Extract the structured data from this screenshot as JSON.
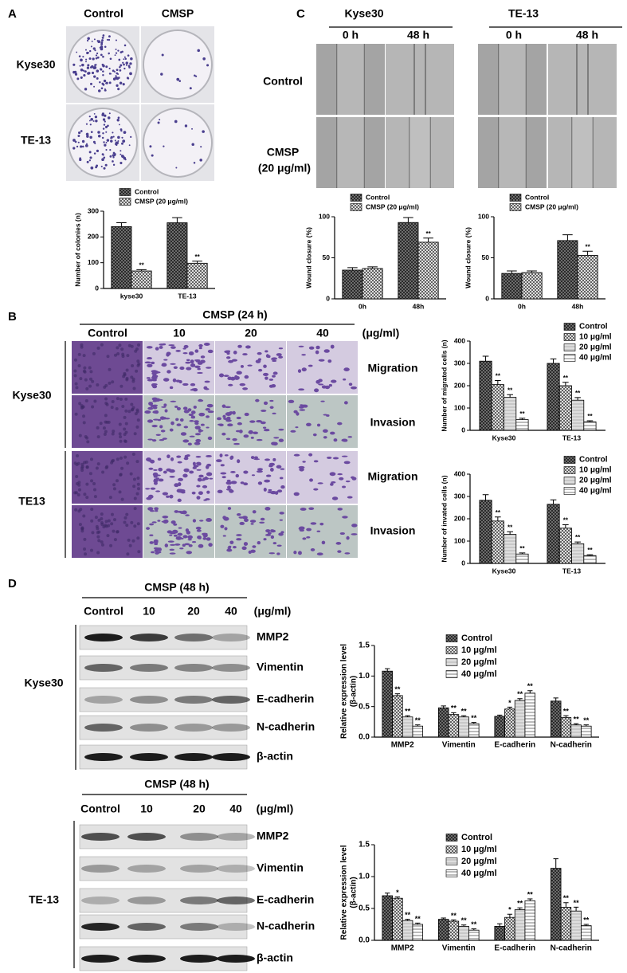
{
  "panel_a": {
    "label": "A",
    "columns": [
      "Control",
      "CMSP"
    ],
    "rows": [
      "Kyse30",
      "TE-13"
    ]
  },
  "panel_c": {
    "label": "C",
    "groups": [
      {
        "name": "Kyse30",
        "times": [
          "0 h",
          "48 h"
        ]
      },
      {
        "name": "TE-13",
        "times": [
          "0 h",
          "48 h"
        ]
      }
    ],
    "rows": [
      "Control",
      "CMSP",
      "(20 μg/ml)"
    ]
  },
  "panel_b": {
    "label": "B",
    "treatment": "CMSP (24 h)",
    "columns": [
      "Control",
      "10",
      "20",
      "40"
    ],
    "unit": "(μg/ml)",
    "rows": [
      "Kyse30",
      "TE13"
    ],
    "assays": [
      "Migration",
      "Invasion",
      "Migration",
      "Invasion"
    ]
  },
  "panel_d": {
    "label": "D",
    "blots": [
      {
        "treatment": "CMSP (48 h)",
        "columns": [
          "Control",
          "10",
          "20",
          "40"
        ],
        "unit": "(μg/ml)",
        "cell_line": "Kyse30",
        "proteins": [
          "MMP2",
          "Vimentin",
          "E-cadherin",
          "N-cadherin",
          "β-actin"
        ]
      },
      {
        "treatment": "CMSP (48 h)",
        "columns": [
          "Control",
          "10",
          "20",
          "40"
        ],
        "unit": "(μg/ml)",
        "cell_line": "TE-13",
        "proteins": [
          "MMP2",
          "Vimentin",
          "E-cadherin",
          "N-cadherin",
          "β-actin"
        ]
      }
    ]
  },
  "chart_data": [
    {
      "type": "bar",
      "ylabel": [
        "Number of colonies (n)"
      ],
      "legend": "above",
      "categories": [
        "kyse30",
        "TE-13"
      ],
      "series": [
        {
          "name": "Control",
          "color": "#6d6d6d",
          "values": [
            240,
            255
          ],
          "errors": [
            15,
            20
          ]
        },
        {
          "name": "CMSP (20 μg/ml)",
          "color": "#444444",
          "values": [
            68,
            98
          ],
          "errors": [
            5,
            8
          ],
          "sig": [
            "**",
            "**"
          ]
        }
      ],
      "ylim": [
        0,
        300
      ],
      "yticks": [
        0,
        100,
        200,
        300
      ]
    },
    {
      "type": "bar",
      "ylabel": [
        "Wound closure (%)"
      ],
      "legend": "above",
      "categories": [
        "0h",
        "48h"
      ],
      "series": [
        {
          "name": "Control",
          "color": "#6d6d6d",
          "values": [
            35,
            93
          ],
          "errors": [
            3,
            6
          ]
        },
        {
          "name": "CMSP (20 μg/ml)",
          "color": "#444444",
          "values": [
            37,
            69
          ],
          "errors": [
            2,
            5
          ],
          "sig": [
            null,
            "**"
          ]
        }
      ],
      "ylim": [
        0,
        100
      ],
      "yticks": [
        0,
        50,
        100
      ]
    },
    {
      "type": "bar",
      "ylabel": [
        "Wound closure (%)"
      ],
      "legend": "above",
      "categories": [
        "0h",
        "48h"
      ],
      "series": [
        {
          "name": "Control",
          "color": "#6d6d6d",
          "values": [
            31,
            71
          ],
          "errors": [
            3,
            7
          ]
        },
        {
          "name": "CMSP (20 μg/ml)",
          "color": "#444444",
          "values": [
            32,
            53
          ],
          "errors": [
            2,
            5
          ],
          "sig": [
            null,
            "**"
          ]
        }
      ],
      "ylim": [
        0,
        100
      ],
      "yticks": [
        0,
        50,
        100
      ]
    },
    {
      "type": "bar",
      "ylabel": [
        "Number of migrated cells (n)"
      ],
      "legend": "top-right",
      "categories": [
        "Kyse30",
        "TE-13"
      ],
      "series": [
        {
          "name": "Control",
          "color": "#6d6d6d",
          "values": [
            310,
            300
          ],
          "errors": [
            22,
            20
          ]
        },
        {
          "name": "10 μg/ml",
          "color": "#444444",
          "values": [
            205,
            200
          ],
          "errors": [
            18,
            15
          ],
          "sig": [
            "**",
            "**"
          ]
        },
        {
          "name": "20 μg/ml",
          "color": "#c8c8c8",
          "values": [
            148,
            135
          ],
          "errors": [
            12,
            12
          ],
          "sig": [
            "**",
            "**"
          ]
        },
        {
          "name": "40 μg/ml",
          "color": "#555555",
          "values": [
            48,
            38
          ],
          "errors": [
            6,
            5
          ],
          "sig": [
            "**",
            "**"
          ]
        }
      ],
      "ylim": [
        0,
        400
      ],
      "yticks": [
        0,
        100,
        200,
        300,
        400
      ]
    },
    {
      "type": "bar",
      "ylabel": [
        "Number of invated cells (n)"
      ],
      "legend": "top-right",
      "categories": [
        "Kyse30",
        "TE-13"
      ],
      "series": [
        {
          "name": "Control",
          "color": "#6d6d6d",
          "values": [
            283,
            265
          ],
          "errors": [
            25,
            20
          ]
        },
        {
          "name": "10 μg/ml",
          "color": "#444444",
          "values": [
            190,
            158
          ],
          "errors": [
            18,
            15
          ],
          "sig": [
            "**",
            "**"
          ]
        },
        {
          "name": "20 μg/ml",
          "color": "#c8c8c8",
          "values": [
            130,
            88
          ],
          "errors": [
            12,
            8
          ],
          "sig": [
            "**",
            "**"
          ]
        },
        {
          "name": "40 μg/ml",
          "color": "#555555",
          "values": [
            42,
            35
          ],
          "errors": [
            5,
            4
          ],
          "sig": [
            "**",
            "**"
          ]
        }
      ],
      "ylim": [
        0,
        400
      ],
      "yticks": [
        0,
        100,
        200,
        300,
        400
      ]
    },
    {
      "type": "bar",
      "ylabel": [
        "Relative expression level",
        "(β-actin)"
      ],
      "legend": "top",
      "categories": [
        "MMP2",
        "Vimentin",
        "E-cadherin",
        "N-cadherin"
      ],
      "series": [
        {
          "name": "Control",
          "color": "#6d6d6d",
          "values": [
            1.08,
            0.48,
            0.34,
            0.59
          ],
          "errors": [
            0.04,
            0.03,
            0.02,
            0.05
          ]
        },
        {
          "name": "10 μg/ml",
          "color": "#444444",
          "values": [
            0.68,
            0.37,
            0.46,
            0.32
          ],
          "errors": [
            0.03,
            0.03,
            0.03,
            0.03
          ],
          "sig": [
            "**",
            "**",
            "*",
            "**"
          ]
        },
        {
          "name": "20 μg/ml",
          "color": "#c8c8c8",
          "values": [
            0.33,
            0.33,
            0.6,
            0.2
          ],
          "errors": [
            0.02,
            0.02,
            0.03,
            0.02
          ],
          "sig": [
            "**",
            "**",
            "**",
            "**"
          ]
        },
        {
          "name": "40 μg/ml",
          "color": "#555555",
          "values": [
            0.18,
            0.22,
            0.72,
            0.18
          ],
          "errors": [
            0.02,
            0.02,
            0.04,
            0.02
          ],
          "sig": [
            "**",
            "**",
            "**",
            "**"
          ]
        }
      ],
      "ylim": [
        0,
        1.5
      ],
      "yticks": [
        {
          "value": 0,
          "label": "0.0"
        },
        {
          "value": 0.5,
          "label": "0.5"
        },
        {
          "value": 1,
          "label": "1.0"
        },
        {
          "value": 1.5,
          "label": "1.5"
        }
      ]
    },
    {
      "type": "bar",
      "ylabel": [
        "Relative expression level",
        "(β-actin)"
      ],
      "legend": "top",
      "categories": [
        "MMP2",
        "Vimentin",
        "E-cadherin",
        "N-cadherin"
      ],
      "series": [
        {
          "name": "Control",
          "color": "#6d6d6d",
          "values": [
            0.7,
            0.33,
            0.22,
            1.13
          ],
          "errors": [
            0.04,
            0.02,
            0.04,
            0.15
          ]
        },
        {
          "name": "10 μg/ml",
          "color": "#444444",
          "values": [
            0.66,
            0.3,
            0.36,
            0.52
          ],
          "errors": [
            0.02,
            0.02,
            0.05,
            0.07
          ],
          "sig": [
            "*",
            "**",
            "*",
            "**"
          ]
        },
        {
          "name": "20 μg/ml",
          "color": "#c8c8c8",
          "values": [
            0.31,
            0.22,
            0.48,
            0.46
          ],
          "errors": [
            0.02,
            0.02,
            0.03,
            0.06
          ],
          "sig": [
            "**",
            "**",
            "**",
            "**"
          ]
        },
        {
          "name": "40 μg/ml",
          "color": "#555555",
          "values": [
            0.25,
            0.16,
            0.62,
            0.23
          ],
          "errors": [
            0.02,
            0.02,
            0.03,
            0.02
          ],
          "sig": [
            "**",
            "**",
            "**",
            "**"
          ]
        }
      ],
      "ylim": [
        0,
        1.5
      ],
      "yticks": [
        {
          "value": 0,
          "label": "0.0"
        },
        {
          "value": 0.5,
          "label": "0.5"
        },
        {
          "value": 1,
          "label": "1.0"
        },
        {
          "value": 1.5,
          "label": "1.5"
        }
      ]
    }
  ]
}
